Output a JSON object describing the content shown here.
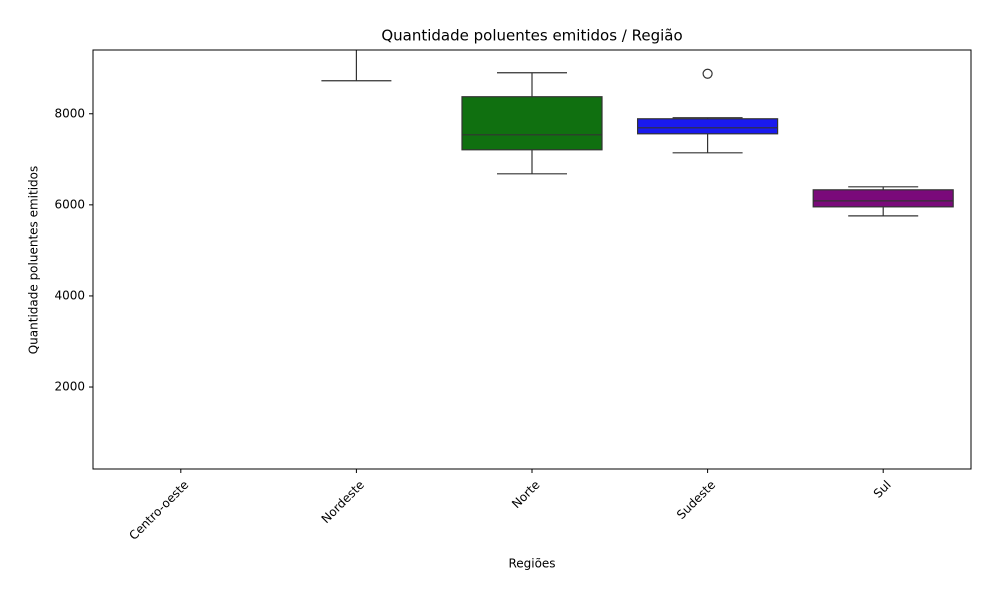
{
  "chart_data": {
    "type": "box",
    "title": "Quantidade poluentes emitidos / Região",
    "xlabel": "Regiões",
    "ylabel": "Quantidade poluentes emitidos",
    "categories": [
      "Centro-oeste",
      "Nordeste",
      "Norte",
      "Sudeste",
      "Sul"
    ],
    "boxes": [
      null,
      {
        "whislo": 8725
      },
      {
        "whislo": 6681,
        "q1": 7209,
        "med": 7538,
        "q3": 8374,
        "whishi": 8901,
        "fliers": [],
        "color": "#107010"
      },
      {
        "whislo": 7143,
        "q1": 7560,
        "med": 7692,
        "q3": 7890,
        "whishi": 7912,
        "fliers": [
          8879
        ],
        "color": "#1a1aef"
      },
      {
        "whislo": 5758,
        "q1": 5956,
        "med": 6088,
        "q3": 6330,
        "whishi": 6396,
        "fliers": [],
        "color": "#7a0a7a"
      }
    ],
    "ylim": [
      200,
      9400
    ],
    "yticks": [
      2000,
      4000,
      6000,
      8000
    ]
  }
}
